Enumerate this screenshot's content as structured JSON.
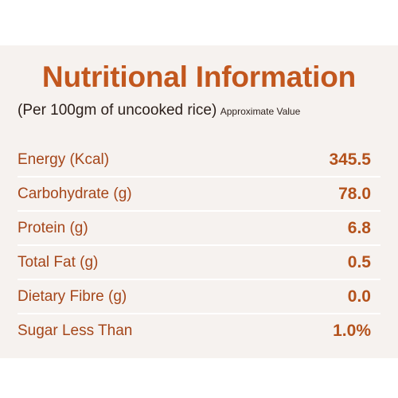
{
  "panel": {
    "title": "Nutritional Information",
    "subtitle": "(Per 100gm of uncooked rice)",
    "subtitle_note": "Approximate Value"
  },
  "rows": [
    {
      "label": "Energy (Kcal)",
      "value": "345.5"
    },
    {
      "label": "Carbohydrate (g)",
      "value": "78.0"
    },
    {
      "label": "Protein (g)",
      "value": "6.8"
    },
    {
      "label": "Total Fat (g)",
      "value": "0.5"
    },
    {
      "label": "Dietary Fibre (g)",
      "value": "0.0"
    },
    {
      "label": "Sugar Less Than",
      "value": "1.0%"
    }
  ],
  "colors": {
    "background": "#f6f2ef",
    "accent": "#c2571e",
    "label_text": "#a5461a",
    "subtitle_text": "#2b1f1a",
    "divider": "#ffffff"
  }
}
